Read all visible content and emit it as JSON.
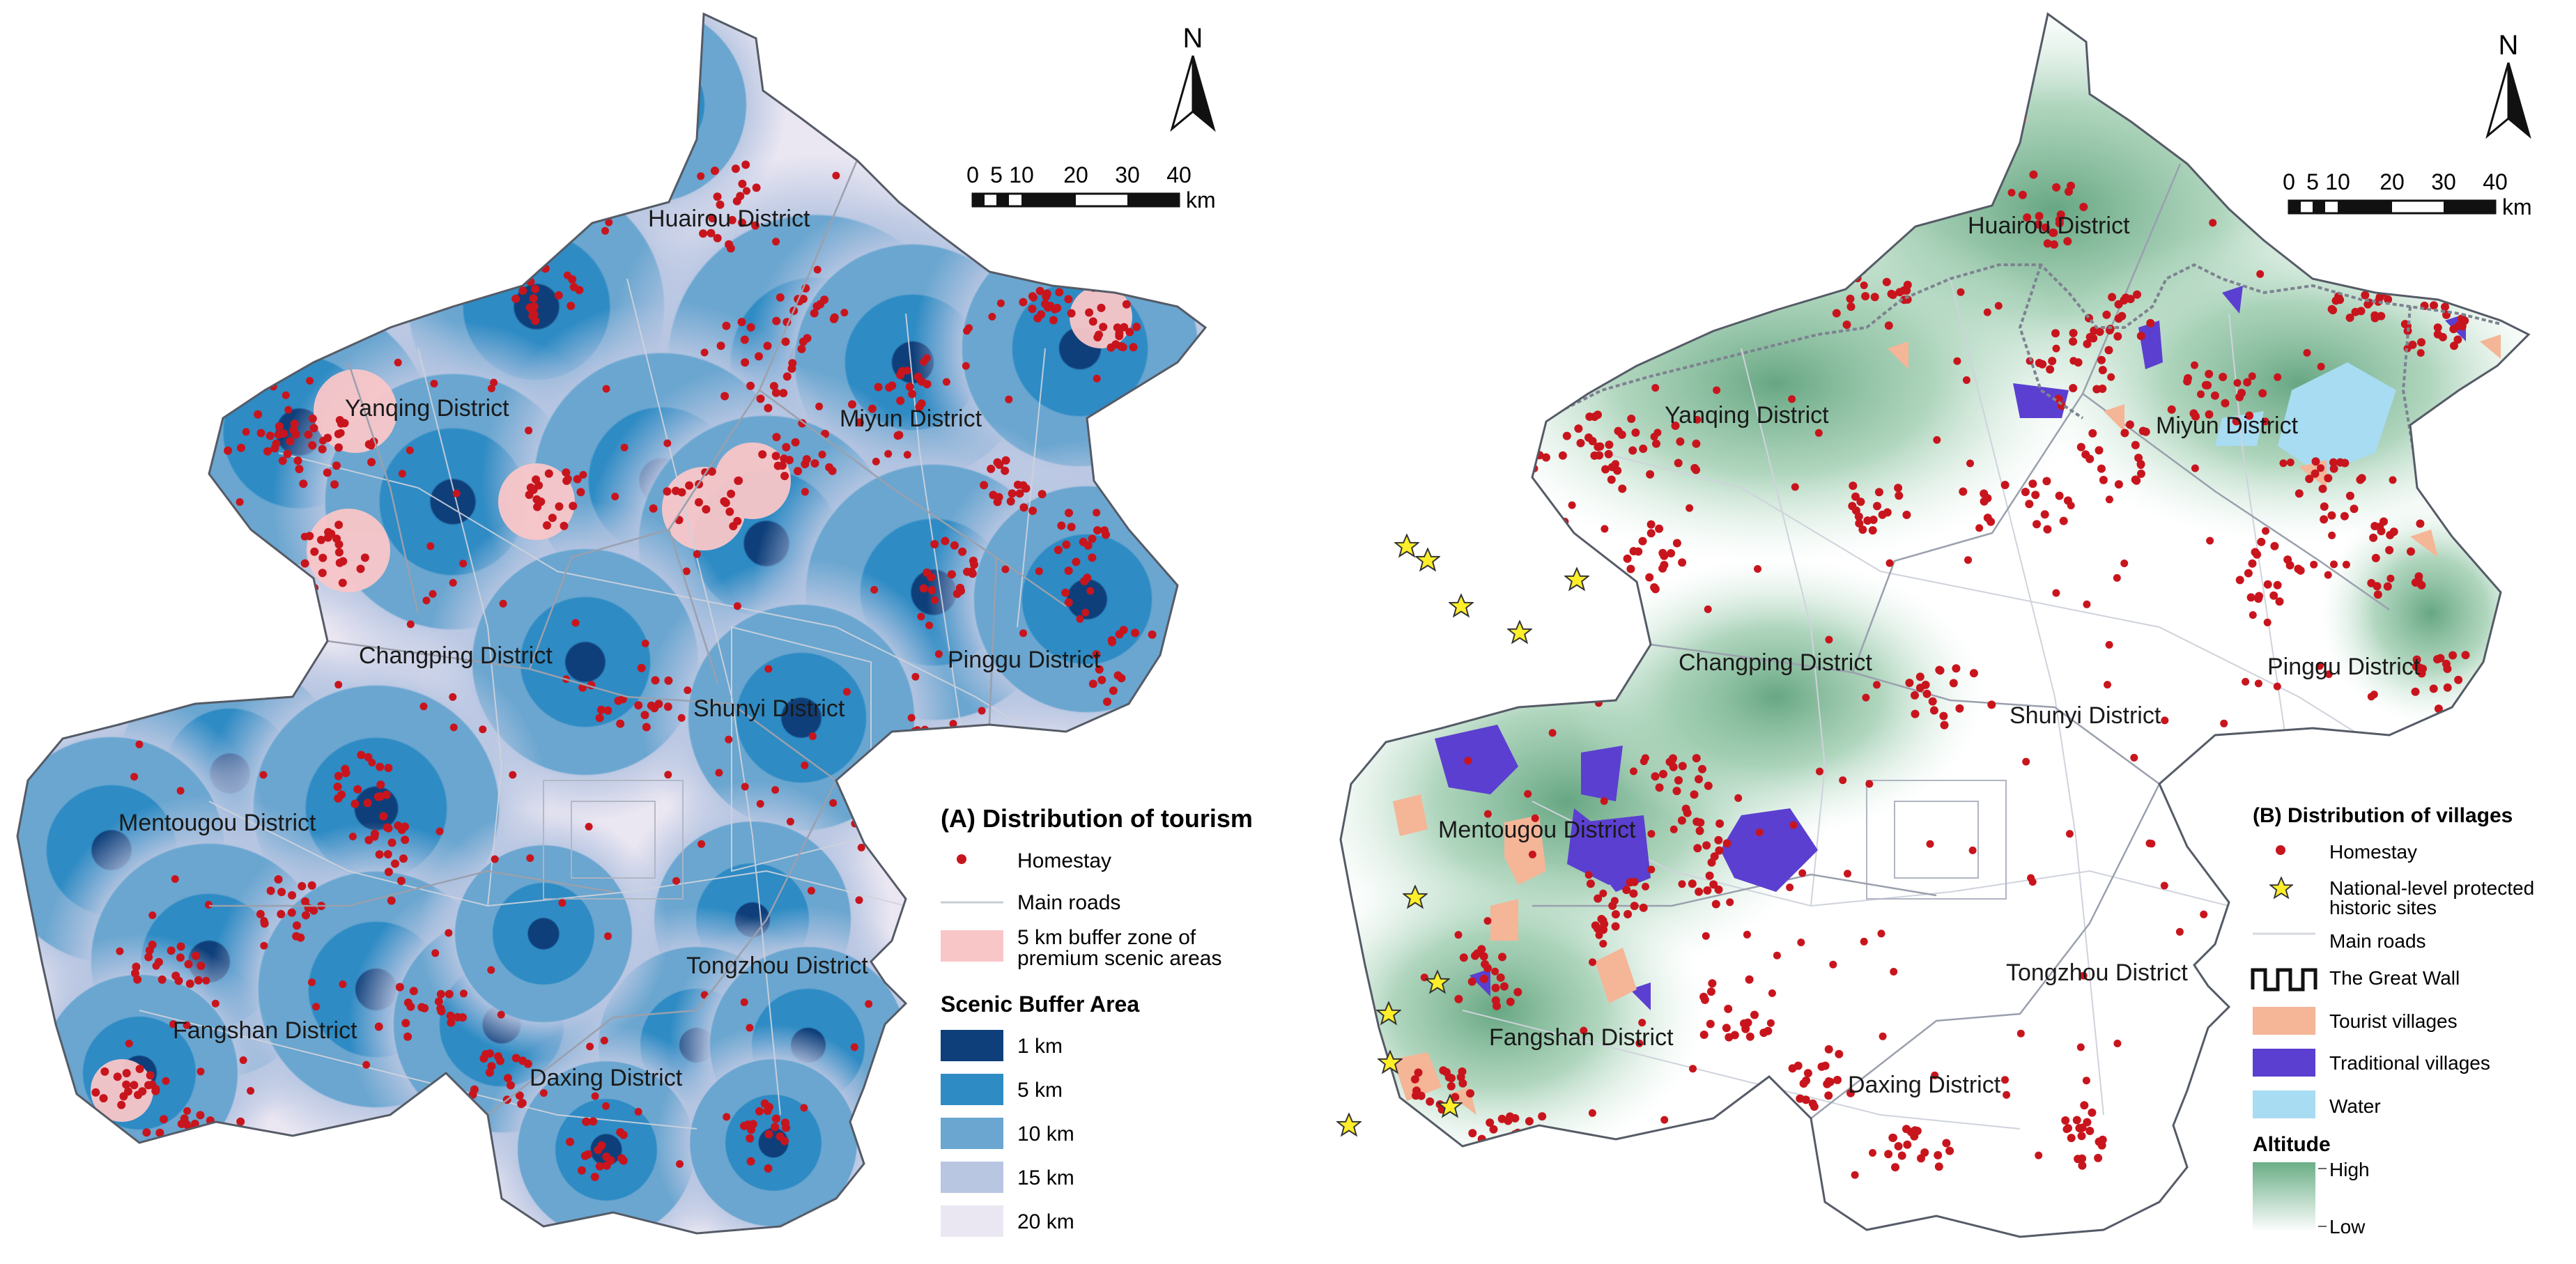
{
  "panel_a": {
    "legend_title": "(A) Distribution of tourism",
    "homestay_label": "Homestay",
    "roads_label": "Main roads",
    "premium_label_1": "5 km buffer zone of",
    "premium_label_2": "premium scenic areas",
    "buffer_title": "Scenic Buffer Area",
    "buffers": [
      {
        "label": "1 km",
        "color": "#0f3f7a"
      },
      {
        "label": "5 km",
        "color": "#2e8bc4"
      },
      {
        "label": "10 km",
        "color": "#6aa6d0"
      },
      {
        "label": "15 km",
        "color": "#b8c6e2"
      },
      {
        "label": "20 km",
        "color": "#ebe7f2"
      }
    ],
    "premium_color": "#f9c6c8",
    "districts": [
      "Huairou District",
      "Yanqing District",
      "Miyun District",
      "Changping District",
      "Pinggu District",
      "Shunyi District",
      "Mentougou District",
      "Tongzhou District",
      "Fangshan District",
      "Daxing District"
    ]
  },
  "panel_b": {
    "legend_title": "(B) Distribution of villages",
    "homestay_label": "Homestay",
    "sites_label_1": "National-level protected",
    "sites_label_2": "historic sites",
    "roads_label": "Main roads",
    "wall_label": "The Great Wall",
    "tourist_label": "Tourist villages",
    "traditional_label": "Traditional villages",
    "water_label": "Water",
    "altitude_title": "Altitude",
    "altitude_high": "High",
    "altitude_low": "Low",
    "colors": {
      "tourist": "#f5b597",
      "traditional": "#5b3fd0",
      "water": "#a7dcf2",
      "high": "#6aae86",
      "low": "#ffffff"
    },
    "districts": [
      "Huairou District",
      "Yanqing District",
      "Miyun District",
      "Changping District",
      "Pinggu District",
      "Shunyi District",
      "Mentougou District",
      "Tongzhou District",
      "Fangshan District",
      "Daxing District"
    ]
  },
  "north_label": "N",
  "scale_ticks": [
    "0",
    "5",
    "10",
    "20",
    "30",
    "40"
  ],
  "scale_unit": "km",
  "homestay_color": "#c8151d",
  "star_color": "#ffee2a"
}
